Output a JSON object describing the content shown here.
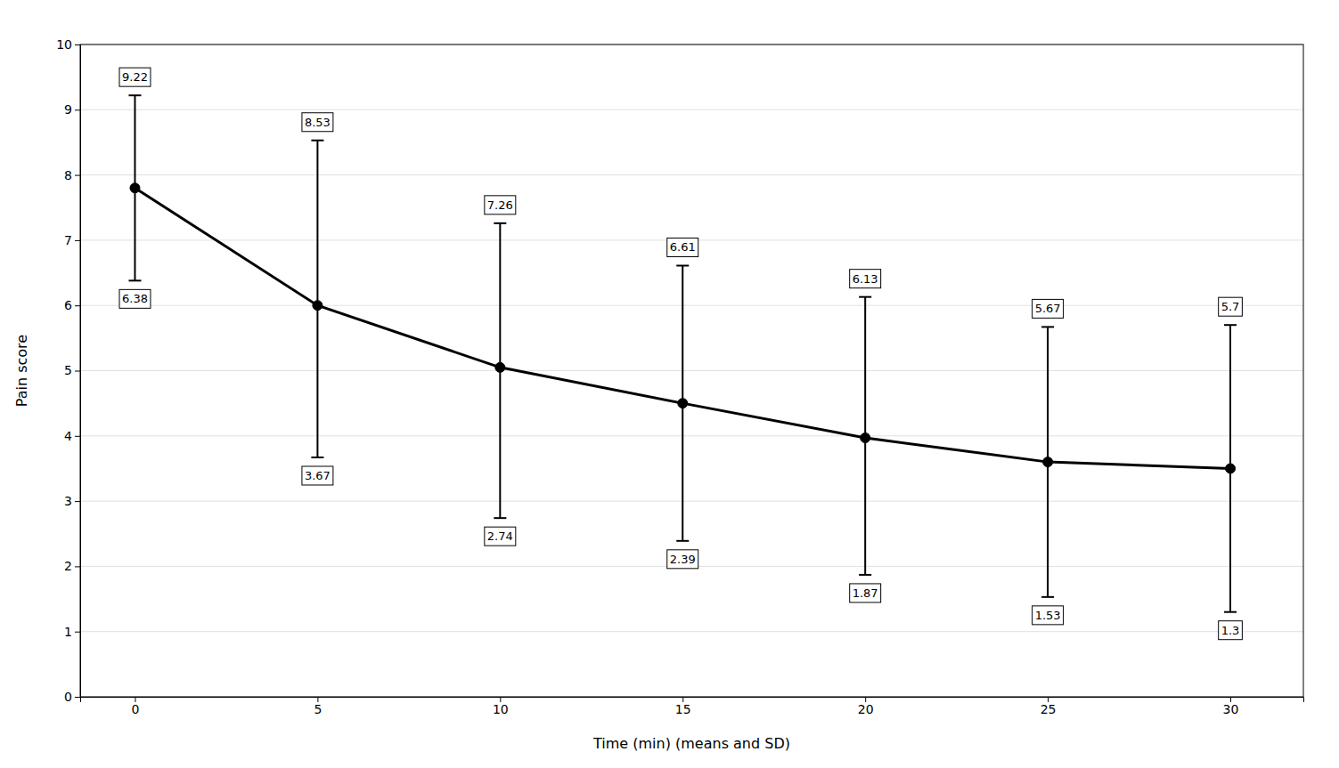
{
  "chart_data": {
    "type": "line",
    "x": [
      0,
      5,
      10,
      15,
      20,
      25,
      30
    ],
    "values": [
      7.8,
      6.0,
      5.05,
      4.5,
      3.97,
      3.6,
      3.5
    ],
    "upper": [
      9.22,
      8.53,
      7.26,
      6.61,
      6.13,
      5.67,
      5.7
    ],
    "lower": [
      6.38,
      3.67,
      2.74,
      2.39,
      1.87,
      1.53,
      1.3
    ],
    "x_label": "Time (min) (means and SD)",
    "y_label": "Pain score",
    "xlim": [
      -1.5,
      32
    ],
    "ylim": [
      0,
      10
    ],
    "xticks": [
      0,
      5,
      10,
      15,
      20,
      25,
      30
    ],
    "yticks": [
      0,
      1,
      2,
      3,
      4,
      5,
      6,
      7,
      8,
      9,
      10
    ],
    "color": "#000000",
    "marker": "circle",
    "grid": "y"
  }
}
